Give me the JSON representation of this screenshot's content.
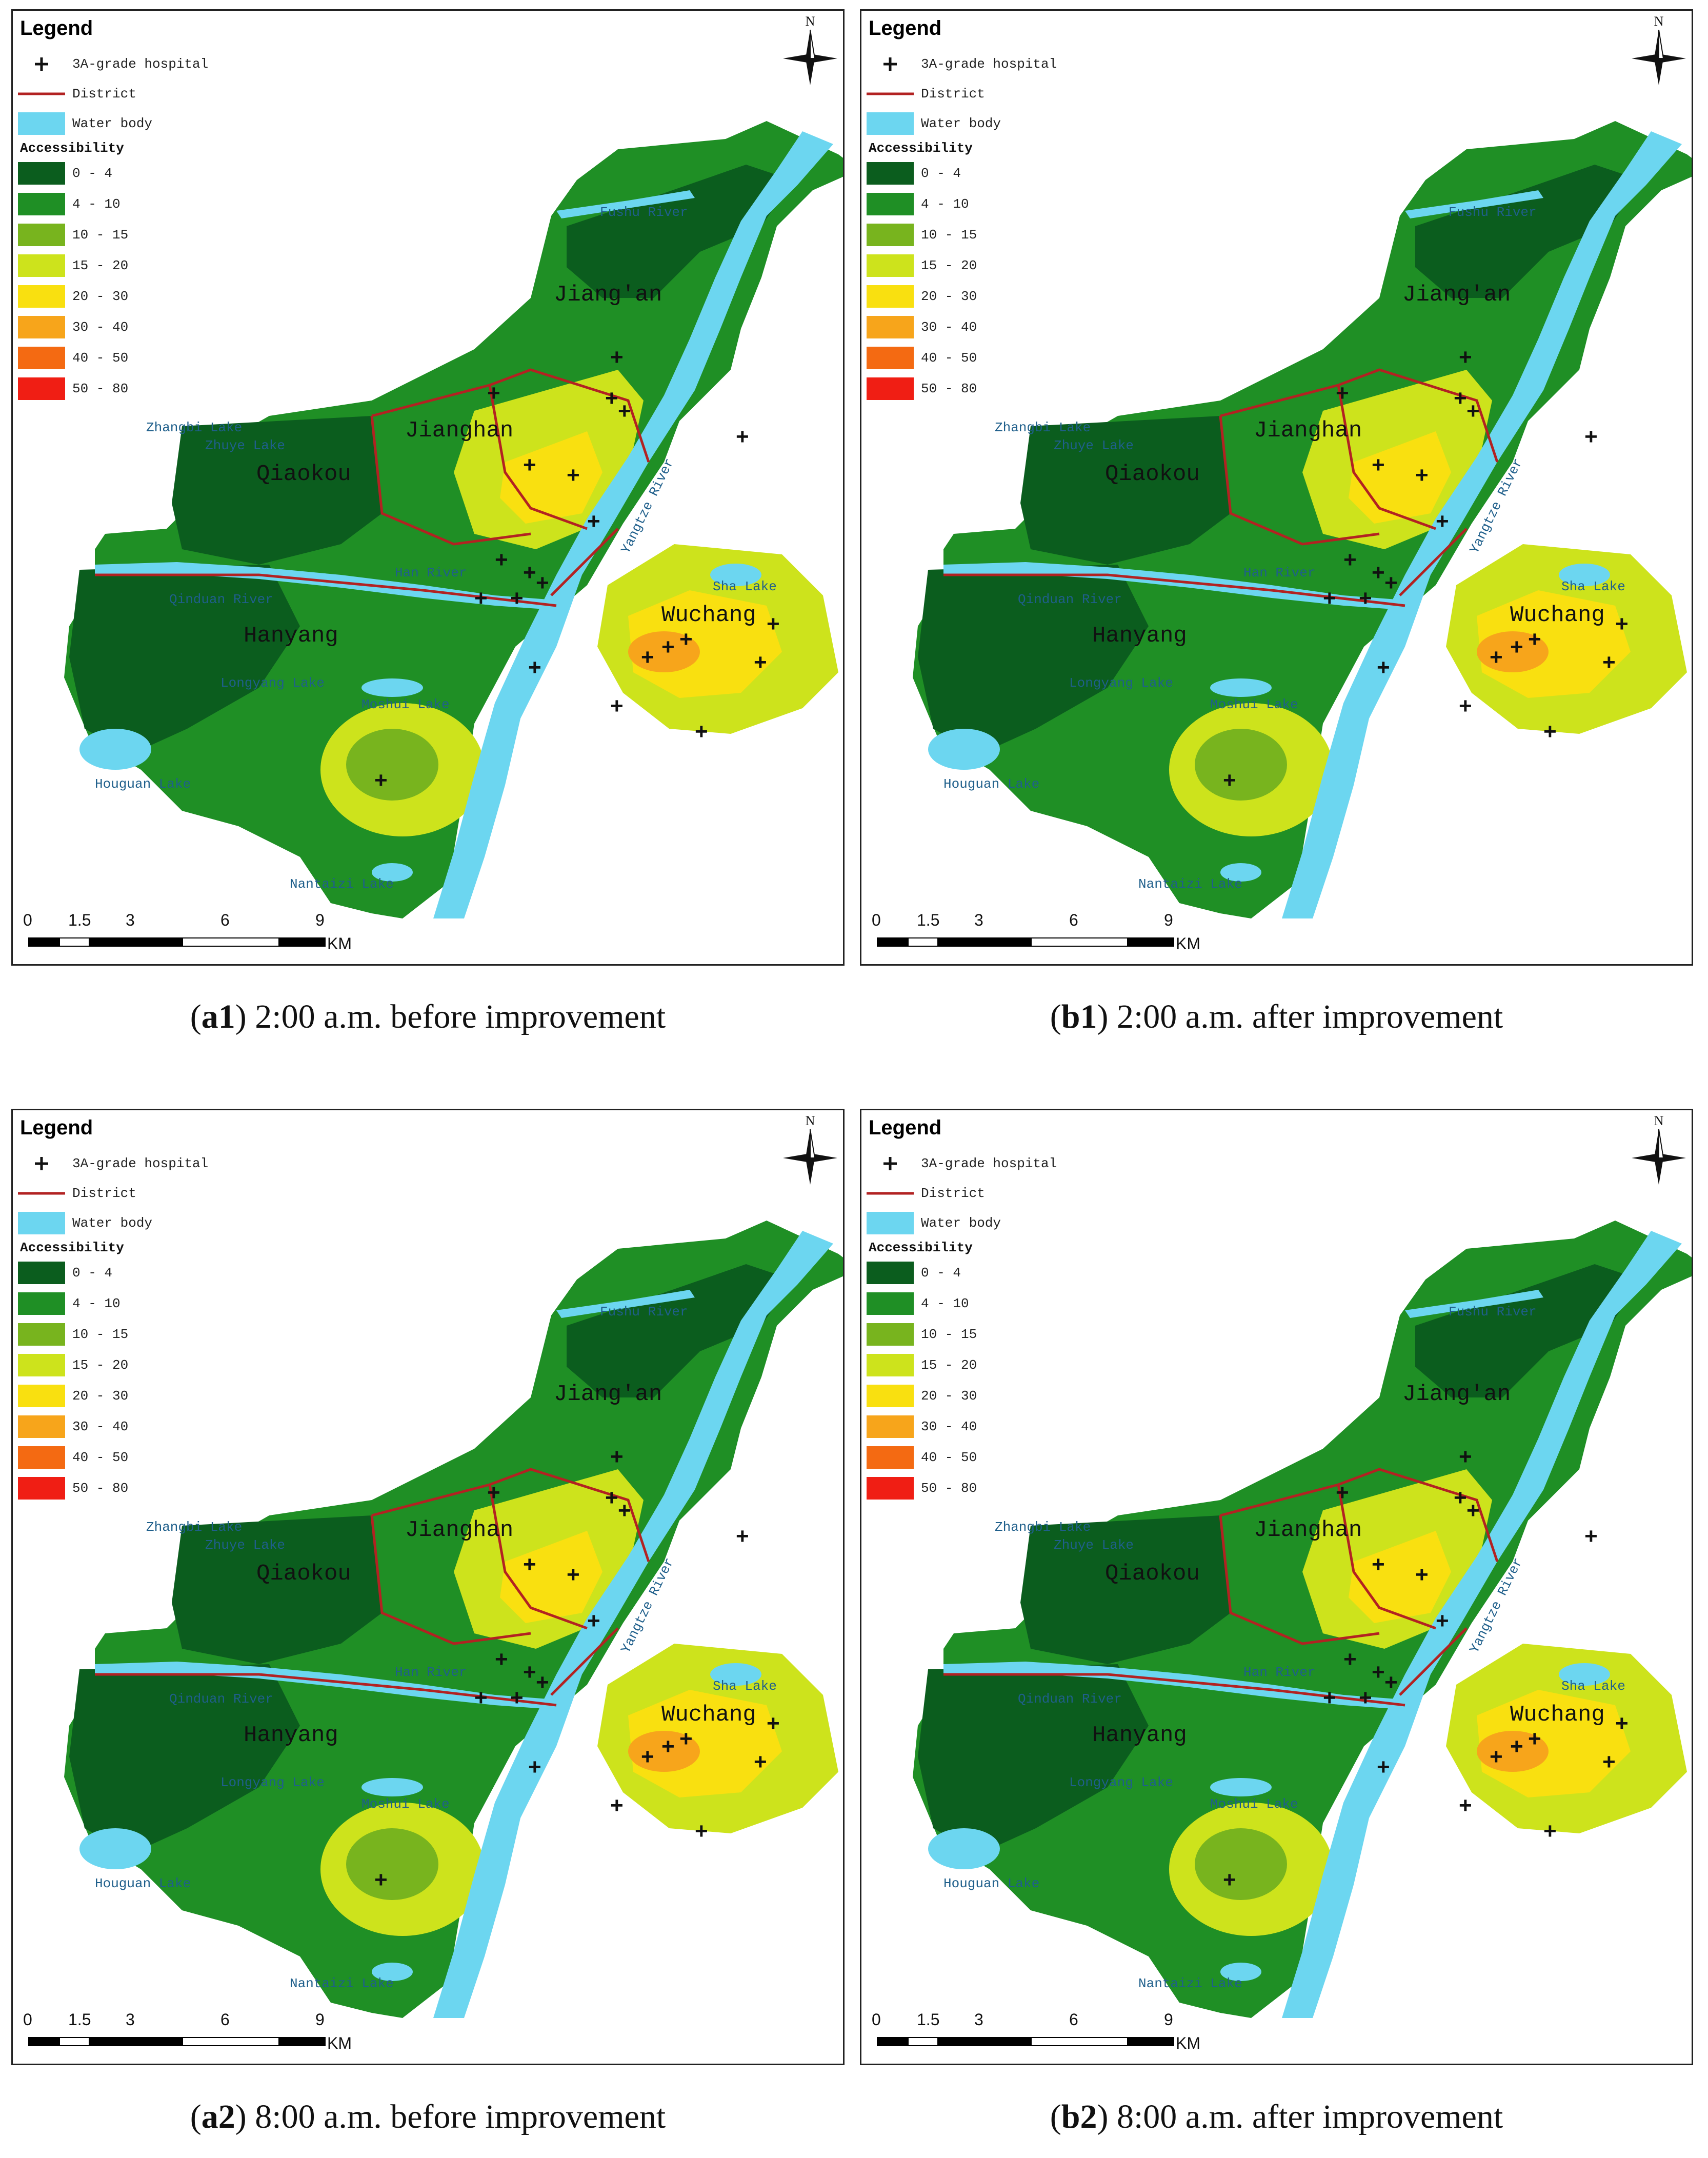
{
  "legend": {
    "title": "Legend",
    "hospital": "3A-grade hospital",
    "district": "District",
    "water": "Water body",
    "accessibility": "Accessibility",
    "classes": [
      {
        "label": "0 - 4",
        "color": "#0b5d1e"
      },
      {
        "label": "4 - 10",
        "color": "#1f8f25"
      },
      {
        "label": "10 - 15",
        "color": "#78b41e"
      },
      {
        "label": "15 - 20",
        "color": "#cde31c"
      },
      {
        "label": "20 - 30",
        "color": "#f9e010"
      },
      {
        "label": "30 - 40",
        "color": "#f7a51b"
      },
      {
        "label": "40 - 50",
        "color": "#f46a12"
      },
      {
        "label": "50 - 80",
        "color": "#f01e14"
      }
    ]
  },
  "colors": {
    "water": "#6cd6f0",
    "district_line": "#b22222",
    "hospital": "#111111"
  },
  "north": "N",
  "scale": {
    "labels": [
      "0",
      "1.5",
      "3",
      "6",
      "9"
    ],
    "unit": "KM"
  },
  "labels": {
    "fushu": "Fushu River",
    "jiangan": "Jiang'an",
    "zhangbi": "Zhangbi Lake",
    "zhuye": "Zhuye Lake",
    "jianghan": "Jianghan",
    "qiaokou": "Qiaokou",
    "yangtze": "Yangtze River",
    "hanriver": "Han River",
    "qinduan": "Qinduan River",
    "shalake": "Sha Lake",
    "wuchang": "Wuchang",
    "hanyang": "Hanyang",
    "longyang": "Longyang Lake",
    "moshui": "Moshui Lake",
    "houguan": "Houguan Lake",
    "nantaizi": "Nantaizi Lake"
  },
  "panels": [
    {
      "letter": "a1",
      "caption": " 2:00 a.m. before improvement"
    },
    {
      "letter": "b1",
      "caption": " 2:00 a.m. after improvement"
    },
    {
      "letter": "a2",
      "caption": " 8:00 a.m. before improvement"
    },
    {
      "letter": "b2",
      "caption": " 8:00 a.m. after improvement"
    }
  ]
}
